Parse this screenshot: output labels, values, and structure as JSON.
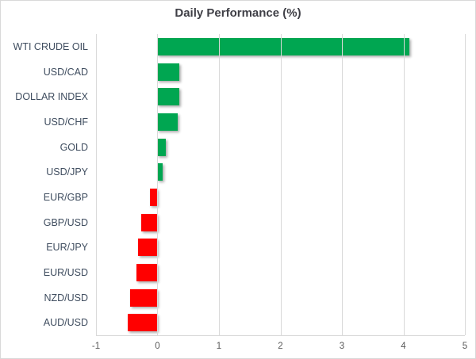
{
  "chart_data": {
    "type": "bar",
    "orientation": "horizontal",
    "title": "Daily Performance (%)",
    "categories": [
      "WTI CRUDE OIL",
      "USD/CAD",
      "DOLLAR INDEX",
      "USD/CHF",
      "GOLD",
      "USD/JPY",
      "EUR/GBP",
      "GBP/USD",
      "EUR/JPY",
      "EUR/USD",
      "NZD/USD",
      "AUD/USD"
    ],
    "values": [
      4.1,
      0.36,
      0.35,
      0.33,
      0.13,
      0.09,
      -0.12,
      -0.27,
      -0.32,
      -0.34,
      -0.44,
      -0.49
    ],
    "xlabel": "",
    "ylabel": "",
    "xlim": [
      -1,
      5
    ],
    "x_ticks": [
      "-1",
      "0",
      "1",
      "2",
      "3",
      "4",
      "5"
    ],
    "grid": "vertical",
    "legend": "none",
    "positive_color": "#00a651",
    "negative_color": "#ff0000",
    "gridline_color": "#d9d9d9",
    "tick_label_color": "#595959",
    "category_label_color": "#3f4d5f",
    "title_color": "#3f3f46"
  }
}
